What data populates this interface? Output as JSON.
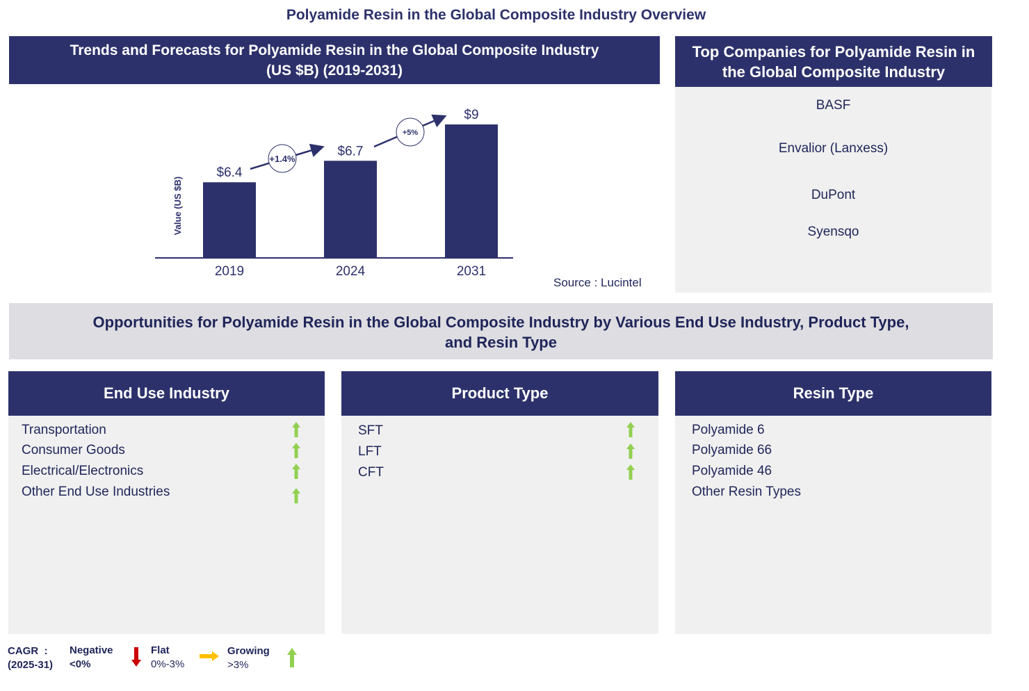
{
  "title": "Polyamide Resin in the Global Composite Industry Overview",
  "trend_header": "Trends and Forecasts for Polyamide Resin in the Global Composite Industry (US $B) (2019-2031)",
  "companies_header": "Top Companies for Polyamide Resin in the Global Composite Industry",
  "companies": [
    "BASF",
    "Envalior (Lanxess)",
    "DuPont",
    "Syensqo"
  ],
  "source": "Source : Lucintel",
  "chart_data": {
    "type": "bar",
    "categories": [
      "2019",
      "2024",
      "2031"
    ],
    "values": [
      6.4,
      6.7,
      9
    ],
    "data_labels": [
      "$6.4",
      "$6.7",
      "$9"
    ],
    "ylabel": "Value (US $B)",
    "growth_annotations": [
      "+1.4%",
      "+5%"
    ],
    "bar_color": "#2d316b"
  },
  "opportunities_header": "Opportunities for Polyamide Resin in the Global Composite Industry by Various End Use Industry, Product Type, and Resin Type",
  "segments": [
    {
      "title": "End Use Industry",
      "items": [
        "Transportation",
        "Consumer Goods",
        "Electrical/Electronics",
        "Other End Use Industries"
      ],
      "trend": [
        "growing",
        "growing",
        "growing",
        "growing"
      ]
    },
    {
      "title": "Product Type",
      "items": [
        "SFT",
        "LFT",
        "CFT"
      ],
      "trend": [
        "growing",
        "growing",
        "growing"
      ]
    },
    {
      "title": "Resin Type",
      "items": [
        "Polyamide 6",
        "Polyamide 66",
        "Polyamide 46",
        "Other Resin Types"
      ]
    }
  ],
  "legend": {
    "cagr": "CAGR  :",
    "period": "(2025-31)",
    "negative": "Negative",
    "negative_range": "<0%",
    "flat": "Flat",
    "flat_range": "0%-3%",
    "growing": "Growing",
    "growing_range": ">3%",
    "colors": {
      "negative": "#cc0000",
      "flat": "#ffc000",
      "growing": "#92d050"
    }
  }
}
